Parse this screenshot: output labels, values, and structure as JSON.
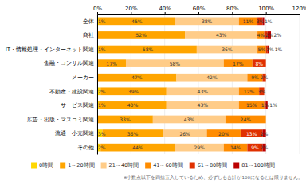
{
  "chart_data": {
    "type": "bar",
    "orientation": "horizontal",
    "stacked": true,
    "data_labels": true,
    "grid": true,
    "legend": "bottom",
    "categories": [
      "全体",
      "商社",
      "IT・情報処理・インターネット関連",
      "金融・コンサル関連",
      "メーカー",
      "不動産・建設関連",
      "サービス関連",
      "広告・出版・マスコミ関連",
      "流通・小売関連",
      "その他"
    ],
    "series": [
      {
        "name": "0時間",
        "color": "#FFD700",
        "values": [
          1,
          0,
          1,
          0,
          0,
          2,
          1,
          0,
          3,
          2
        ],
        "value_labels": [
          "1%",
          null,
          "1%",
          null,
          null,
          "2%",
          "1%",
          null,
          "3%",
          "2%"
        ]
      },
      {
        "name": "1～20時間",
        "color": "#FFA500",
        "values": [
          45,
          52,
          58,
          17,
          47,
          39,
          40,
          33,
          36,
          44
        ],
        "value_labels": [
          "45%",
          "52%",
          "58%",
          "17%",
          "47%",
          "39%",
          "40%",
          "33%",
          "36%",
          "44%"
        ]
      },
      {
        "name": "21～40時間",
        "color": "#FFCC88",
        "values": [
          38,
          43,
          36,
          58,
          42,
          43,
          43,
          43,
          26,
          29
        ],
        "value_labels": [
          "38%",
          "43%",
          "36%",
          "58%",
          "42%",
          "43%",
          "43%",
          "43%",
          "26%",
          "29%"
        ]
      },
      {
        "name": "41～60時間",
        "color": "#FF8C00",
        "values": [
          11,
          4,
          5,
          17,
          9,
          12,
          15,
          24,
          20,
          14
        ],
        "value_labels": [
          "11%",
          "4%",
          "5%",
          "17%",
          "9%",
          "12%",
          "15%",
          "24%",
          "20%",
          "14%"
        ]
      },
      {
        "name": "61～80時間",
        "color": "#E03000",
        "values": [
          3,
          2,
          1,
          8,
          2,
          3,
          1,
          0,
          13,
          9
        ],
        "value_labels": [
          "3%",
          "2%",
          "1%",
          "8%",
          "2%",
          "3%",
          "1%",
          null,
          "13%",
          "9%"
        ]
      },
      {
        "name": "81～100時間",
        "color": "#BB0000",
        "values": [
          1,
          2,
          1,
          0,
          0,
          0,
          1,
          0,
          2,
          2
        ],
        "value_labels": [
          "1%",
          "2%",
          "1%",
          null,
          null,
          null,
          "1%",
          null,
          "2%",
          "2%"
        ]
      }
    ],
    "xlim": [
      0,
      120
    ],
    "xticks": [
      {
        "value": 0,
        "label": "0%"
      },
      {
        "value": 20,
        "label": "20%"
      },
      {
        "value": 40,
        "label": "40%"
      },
      {
        "value": 60,
        "label": "60%"
      },
      {
        "value": 80,
        "label": "80%"
      },
      {
        "value": 100,
        "label": "100%"
      },
      {
        "value": 120,
        "label": "120%"
      }
    ],
    "annotations": [
      "※小数点以下を四捨五入しているため、必ずしも合計が100になるとは限りません。"
    ]
  }
}
